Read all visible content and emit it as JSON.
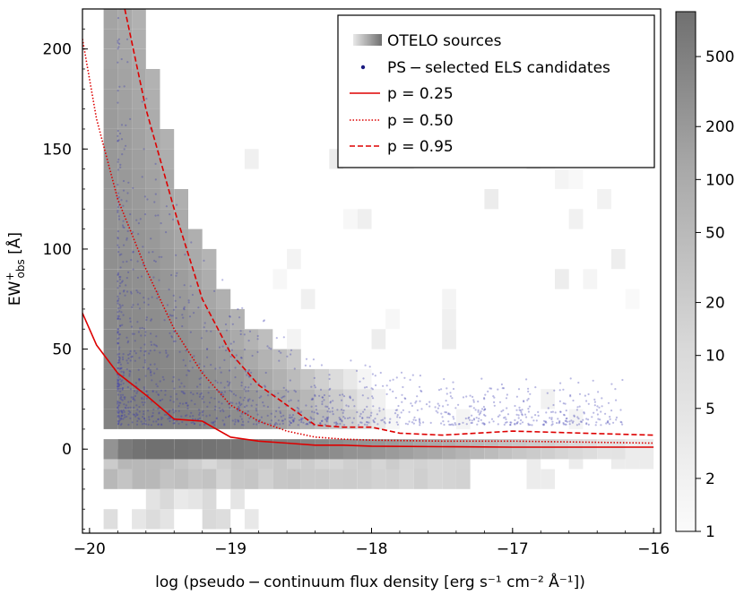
{
  "chart_data": {
    "type": "heatmap",
    "xlabel": "log (pseudo − continuum flux density [erg s⁻¹ cm⁻² Å⁻¹])",
    "ylabel": "EW⁺_obs [Å]",
    "ylabel_main": "EW",
    "ylabel_sup": "+",
    "ylabel_sub": "obs",
    "ylabel_unit": " [Å]",
    "xlim": [
      -20.05,
      -15.95
    ],
    "ylim": [
      -42,
      220
    ],
    "x_ticks": [
      -20,
      -19,
      -18,
      -17,
      -16
    ],
    "x_tick_labels": [
      "−20",
      "−19",
      "−18",
      "−17",
      "−16"
    ],
    "y_ticks": [
      0,
      50,
      100,
      150,
      200
    ],
    "y_tick_labels": [
      "0",
      "50",
      "100",
      "150",
      "200"
    ],
    "colorbar": {
      "scale": "log",
      "range": [
        1,
        900
      ],
      "ticks": [
        1,
        2,
        5,
        10,
        20,
        50,
        100,
        200,
        500
      ],
      "tick_labels": [
        "1",
        "2",
        "5",
        "10",
        "20",
        "50",
        "100",
        "200",
        "500"
      ]
    },
    "legend": {
      "position": "top-right",
      "entries": [
        {
          "label": "OTELO sources",
          "marker": "gradient"
        },
        {
          "label": "PS − selected ELS candidates",
          "marker": "dot",
          "color": "#1a1a80"
        },
        {
          "label": "p = 0.25",
          "marker": "solid",
          "color": "#dd0000"
        },
        {
          "label": "p = 0.50",
          "marker": "dotted",
          "color": "#dd0000"
        },
        {
          "label": "p = 0.95",
          "marker": "dashed",
          "color": "#dd0000"
        }
      ]
    },
    "heatmap": {
      "bin_width_x": 0.1,
      "bin_height_y": 10,
      "description_counts": "counts per bin, log color scale",
      "zero_row": {
        "y": 0,
        "x_bins": [
          -19.9,
          -19.8,
          -19.7,
          -19.6,
          -19.5,
          -19.4,
          -19.3,
          -19.2,
          -19.1,
          -19.0,
          -18.9,
          -18.8,
          -18.7,
          -18.6,
          -18.5,
          -18.4,
          -18.3,
          -18.2,
          -18.1,
          -18.0,
          -17.9,
          -17.8,
          -17.7,
          -17.6,
          -17.5,
          -17.4,
          -17.3,
          -17.2,
          -17.1,
          -17.0,
          -16.9,
          -16.8,
          -16.7,
          -16.6,
          -16.5,
          -16.4,
          -16.3,
          -16.2,
          -16.1
        ],
        "counts": [
          150,
          500,
          700,
          800,
          800,
          800,
          750,
          700,
          650,
          600,
          500,
          450,
          400,
          350,
          300,
          250,
          200,
          160,
          140,
          120,
          100,
          80,
          60,
          50,
          40,
          30,
          25,
          20,
          15,
          12,
          10,
          8,
          6,
          5,
          4,
          3,
          3,
          2,
          2
        ]
      }
    },
    "series": [
      {
        "name": "p = 0.25",
        "style": "solid",
        "color": "#dd0000",
        "x": [
          -20.05,
          -19.95,
          -19.8,
          -19.6,
          -19.4,
          -19.2,
          -19.0,
          -18.8,
          -18.6,
          -18.4,
          -18.2,
          -18.0,
          -17.5,
          -17.0,
          -16.5,
          -16.0
        ],
        "y": [
          68,
          52,
          38,
          27,
          15,
          14,
          6,
          4,
          3,
          2,
          2,
          1.5,
          1.2,
          1.0,
          1.0,
          1.0
        ]
      },
      {
        "name": "p = 0.50",
        "style": "dotted",
        "color": "#dd0000",
        "x": [
          -20.05,
          -19.95,
          -19.8,
          -19.6,
          -19.4,
          -19.2,
          -19.0,
          -18.8,
          -18.6,
          -18.4,
          -18.2,
          -18.0,
          -17.5,
          -17.0,
          -16.5,
          -16.0
        ],
        "y": [
          205,
          165,
          125,
          90,
          60,
          38,
          22,
          14,
          9,
          6,
          5,
          4.5,
          4,
          4,
          3.5,
          3
        ]
      },
      {
        "name": "p = 0.95",
        "style": "dashed",
        "color": "#dd0000",
        "x": [
          -19.75,
          -19.6,
          -19.4,
          -19.2,
          -19.0,
          -18.8,
          -18.6,
          -18.4,
          -18.2,
          -18.0,
          -17.8,
          -17.5,
          -17.0,
          -16.5,
          -16.0
        ],
        "y": [
          220,
          170,
          120,
          75,
          48,
          32,
          22,
          12,
          11,
          11,
          8,
          7,
          9,
          8,
          7
        ]
      }
    ],
    "grid": false
  }
}
